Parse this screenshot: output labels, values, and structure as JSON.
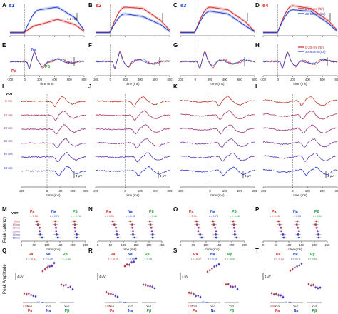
{
  "colors": {
    "red": "#d62728",
    "blue": "#1f3fd1",
    "green": "#1e9a3b",
    "axis": "#222222",
    "text": "#222222"
  },
  "labels": {
    "row_ae": [
      "A",
      "B",
      "C",
      "D"
    ],
    "electrodes": [
      "e1",
      "e2",
      "e3",
      "e4"
    ],
    "row_eh": [
      "E",
      "F",
      "G",
      "H"
    ],
    "row_il": [
      "I",
      "J",
      "K",
      "L"
    ],
    "row_mp": [
      "M",
      "N",
      "O",
      "P"
    ],
    "row_qt": [
      "Q",
      "R",
      "S",
      "T"
    ],
    "hg_scale": "4 z-HG",
    "uv_scale": "4 μV",
    "time_label": "time (ms)",
    "vot_label": "VOT",
    "peak_latency": "Peak Latency",
    "peak_amplitude": "Peak Amplitude",
    "vot_axis": "VOT",
    "ms0": "0 ms",
    "ms50": "50 ms"
  },
  "legend": {
    "line1": "0-20 ms (/b/)",
    "line2": "30-50 ms (/p/)"
  },
  "components": {
    "P1": "Pa",
    "N1": "Na",
    "P2": "Pβ"
  },
  "vot_levels": [
    "0 ms",
    "10 ms",
    "20 ms",
    "30 ms",
    "40 ms",
    "50 ms"
  ],
  "corr_mp": [
    [
      "r = 0.95",
      "r = 0.76",
      "r = 0.76"
    ],
    [
      "r = 0.91",
      "r = 0.88",
      "r = 0.46"
    ],
    [
      "r = 0.91",
      "r = 0.75",
      "r = 0.88"
    ],
    [
      "r = 0.15",
      "r = 0.93",
      "r = 0.04"
    ]
  ],
  "corr_qt": [
    [
      "r = -0.51",
      "r = 0.39",
      "r = -0.40"
    ],
    [
      "r = -0.28",
      "r = 0.95",
      "r = 0.78"
    ],
    [
      "r = -0.27",
      "r = 0.65",
      "r = -0.44"
    ],
    [
      "r = -0.52",
      "r = 0.75",
      "r = 0.50"
    ]
  ],
  "chart_data": {
    "type": "line",
    "panels": "A-T",
    "x_ticks_ms": [
      -200,
      0,
      200,
      400,
      600,
      800
    ],
    "x_ticks_il": [
      -200,
      0,
      100,
      200,
      300
    ],
    "latency_ticks": [
      0,
      50,
      100,
      150,
      200,
      250
    ],
    "xlabel": "time (ms)",
    "series": [
      {
        "name": "0-20 ms (/b/)",
        "color": "#d62728"
      },
      {
        "name": "30-50 ms (/p/)",
        "color": "#1f3fd1"
      }
    ],
    "vot_levels_ms": [
      0,
      10,
      20,
      30,
      40,
      50
    ]
  }
}
